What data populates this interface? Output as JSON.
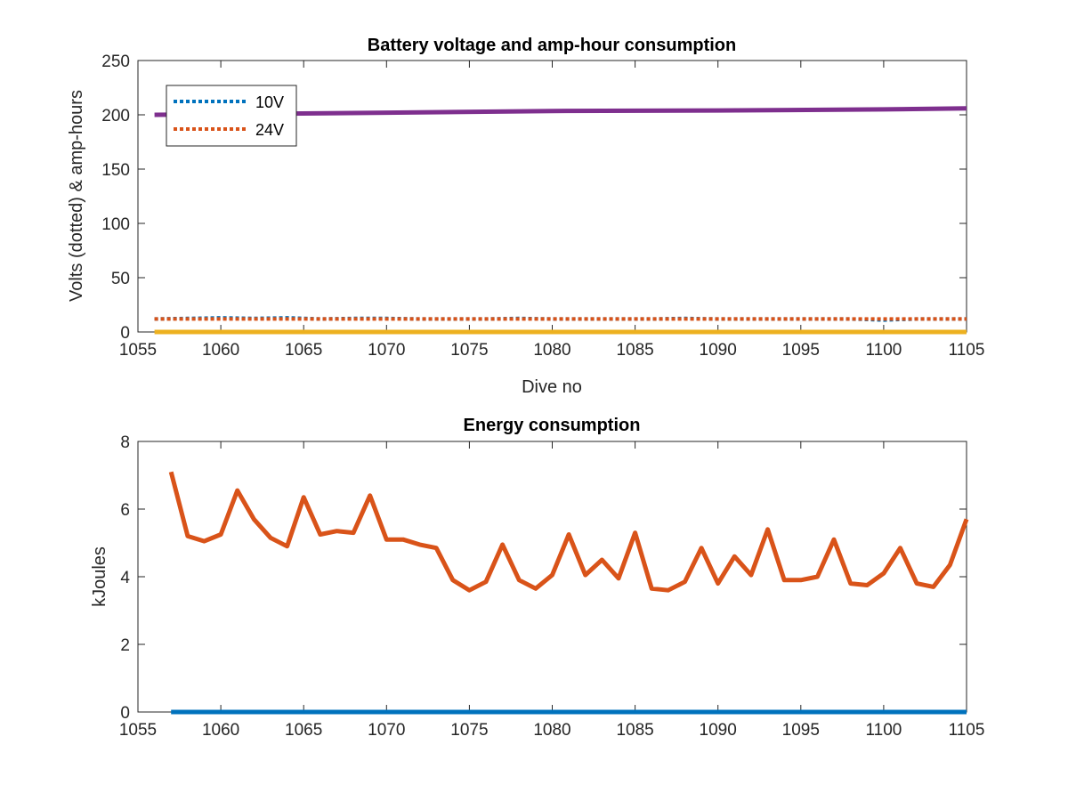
{
  "chart_data": [
    {
      "type": "line",
      "title": "Battery voltage and amp-hour consumption",
      "xlabel": "Dive no",
      "ylabel": "Volts (dotted) & amp-hours",
      "xlim": [
        1055,
        1105
      ],
      "ylim": [
        0,
        250
      ],
      "xticks": [
        1055,
        1060,
        1065,
        1070,
        1075,
        1080,
        1085,
        1090,
        1095,
        1100,
        1105
      ],
      "yticks": [
        0,
        50,
        100,
        150,
        200,
        250
      ],
      "grid": false,
      "legend": "top-left",
      "series": [
        {
          "name": "10V",
          "style": "dotted",
          "color": "#0072BD",
          "x": [
            1056,
            1058,
            1060,
            1062,
            1064,
            1066,
            1068,
            1070,
            1072,
            1074,
            1076,
            1078,
            1080,
            1082,
            1084,
            1086,
            1088,
            1090,
            1092,
            1094,
            1096,
            1098,
            1100,
            1102,
            1105
          ],
          "values": [
            12,
            12.5,
            13,
            12.5,
            13,
            12,
            12.5,
            12.5,
            12,
            12,
            12,
            12.5,
            12,
            12,
            12,
            12,
            12.5,
            12,
            12,
            12,
            12,
            12,
            11,
            12,
            12
          ]
        },
        {
          "name": "24V",
          "style": "dotted",
          "color": "#D95319",
          "x": [
            1056,
            1105
          ],
          "values": [
            12,
            12
          ]
        },
        {
          "style": "solid",
          "color": "#EDB120",
          "x": [
            1056,
            1105
          ],
          "values": [
            0,
            0
          ]
        },
        {
          "style": "solid",
          "color": "#7E2F8E",
          "x": [
            1056,
            1070,
            1080,
            1090,
            1100,
            1105
          ],
          "values": [
            200,
            202,
            203.5,
            204,
            205,
            206
          ]
        }
      ]
    },
    {
      "type": "line",
      "title": "Energy consumption",
      "xlabel": "",
      "ylabel": "kJoules",
      "xlim": [
        1055,
        1105
      ],
      "ylim": [
        0,
        8
      ],
      "xticks": [
        1055,
        1060,
        1065,
        1070,
        1075,
        1080,
        1085,
        1090,
        1095,
        1100,
        1105
      ],
      "yticks": [
        0,
        2,
        4,
        6,
        8
      ],
      "grid": false,
      "series": [
        {
          "style": "solid",
          "color": "#0072BD",
          "x": [
            1057,
            1105
          ],
          "values": [
            0,
            0
          ]
        },
        {
          "style": "solid",
          "color": "#D95319",
          "x": [
            1057,
            1058,
            1059,
            1060,
            1061,
            1062,
            1063,
            1064,
            1065,
            1066,
            1067,
            1068,
            1069,
            1070,
            1071,
            1072,
            1073,
            1074,
            1075,
            1076,
            1077,
            1078,
            1079,
            1080,
            1081,
            1082,
            1083,
            1084,
            1085,
            1086,
            1087,
            1088,
            1089,
            1090,
            1091,
            1092,
            1093,
            1094,
            1095,
            1096,
            1097,
            1098,
            1099,
            1100,
            1101,
            1102,
            1103,
            1104,
            1105
          ],
          "values": [
            7.1,
            5.2,
            5.05,
            5.25,
            6.55,
            5.7,
            5.15,
            4.9,
            6.35,
            5.25,
            5.35,
            5.3,
            6.4,
            5.1,
            5.1,
            4.95,
            4.85,
            3.9,
            3.6,
            3.85,
            4.95,
            3.9,
            3.65,
            4.05,
            5.25,
            4.05,
            4.5,
            3.95,
            5.3,
            3.65,
            3.6,
            3.85,
            4.85,
            3.8,
            4.6,
            4.05,
            5.4,
            3.9,
            3.9,
            4.0,
            5.1,
            3.8,
            3.75,
            4.1,
            4.85,
            3.8,
            3.7,
            4.35,
            5.7
          ]
        }
      ]
    }
  ]
}
